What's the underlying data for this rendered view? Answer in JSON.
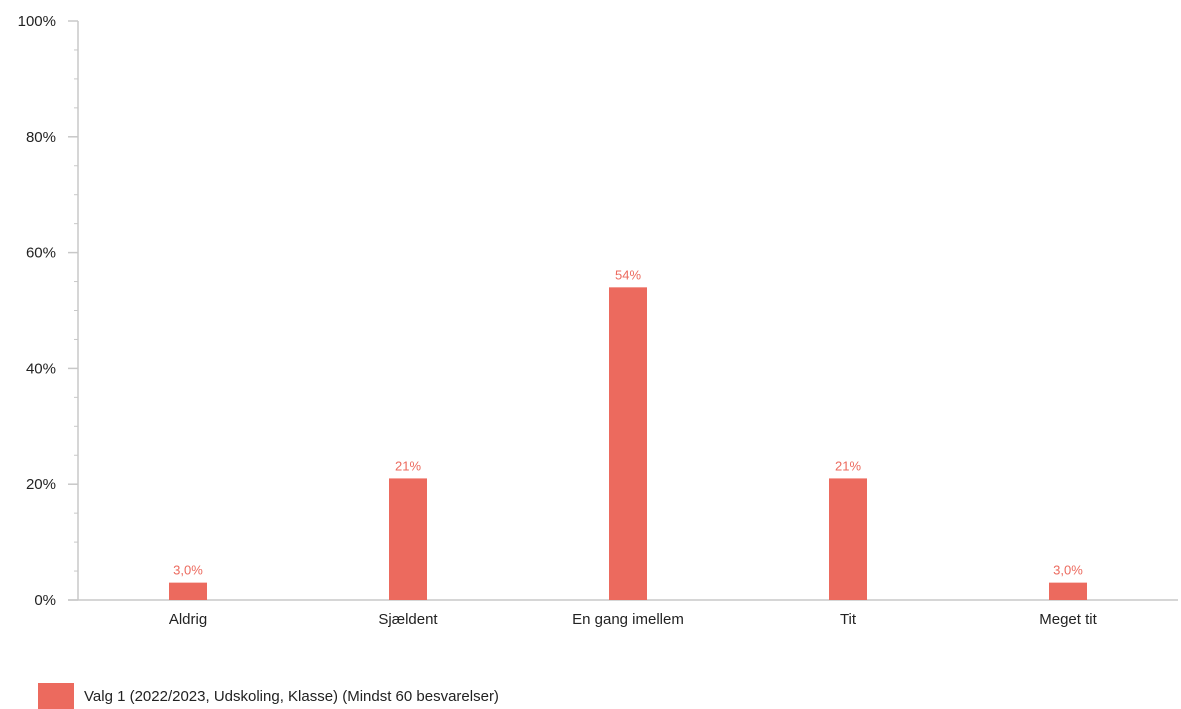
{
  "chart_data": {
    "type": "bar",
    "categories": [
      "Aldrig",
      "Sjældent",
      "En gang imellem",
      "Tit",
      "Meget tit"
    ],
    "series": [
      {
        "name": "Valg 1 (2022/2023, Udskoling, Klasse) (Mindst 60 besvarelser)",
        "values": [
          3.0,
          21,
          54,
          21,
          3.0
        ],
        "labels": [
          "3,0%",
          "21%",
          "54%",
          "21%",
          "3,0%"
        ],
        "color": "#ec6a5e"
      }
    ],
    "ylim": [
      0,
      100
    ],
    "y_ticks": [
      0,
      20,
      40,
      60,
      80,
      100
    ],
    "y_tick_labels": [
      "0%",
      "20%",
      "40%",
      "60%",
      "80%",
      "100%"
    ],
    "legend_position": "bottom-left",
    "grid": false
  }
}
